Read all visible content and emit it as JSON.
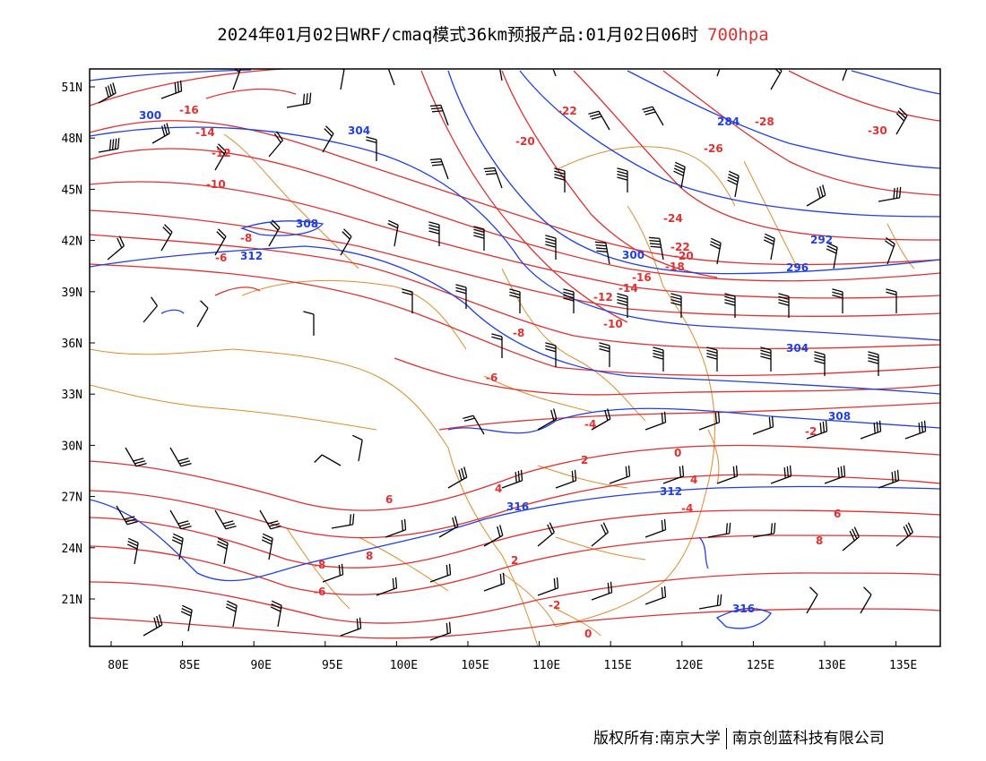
{
  "title": {
    "main": "2024年01月02日WRF/cmaq模式36km预报产品:01月02日06时",
    "level": "700hpa",
    "level_color": "#e03030"
  },
  "colors": {
    "temperature": "#e03030",
    "height": "#2040e0",
    "border": "#e08a2a",
    "wind": "#000000",
    "frame": "#000000"
  },
  "axes": {
    "lon_labels": [
      "80E",
      "85E",
      "90E",
      "95E",
      "100E",
      "105E",
      "110E",
      "115E",
      "120E",
      "125E",
      "130E",
      "135E"
    ],
    "lat_labels": [
      "51N",
      "48N",
      "45N",
      "42N",
      "39N",
      "36N",
      "33N",
      "30N",
      "27N",
      "24N",
      "21N"
    ]
  },
  "temperature_labels": [
    "-16",
    "-14",
    "-12",
    "-10",
    "-8",
    "-6",
    "-22",
    "-20",
    "-26",
    "-28",
    "-30",
    "-24",
    "-22",
    "-20",
    "-18",
    "-16",
    "-14",
    "-12",
    "-10",
    "-8",
    "-6",
    "-4",
    "-2",
    "0",
    "2",
    "4",
    "6",
    "8",
    "-8",
    "-6",
    "-4",
    "-2",
    "0",
    "2",
    "4",
    "6",
    "8"
  ],
  "height_labels": [
    "300",
    "304",
    "308",
    "312",
    "316",
    "284",
    "292",
    "296",
    "300",
    "304",
    "308",
    "312",
    "316"
  ],
  "footer": {
    "left": "版权所有:南京大学",
    "right": "南京创蓝科技有限公司"
  }
}
